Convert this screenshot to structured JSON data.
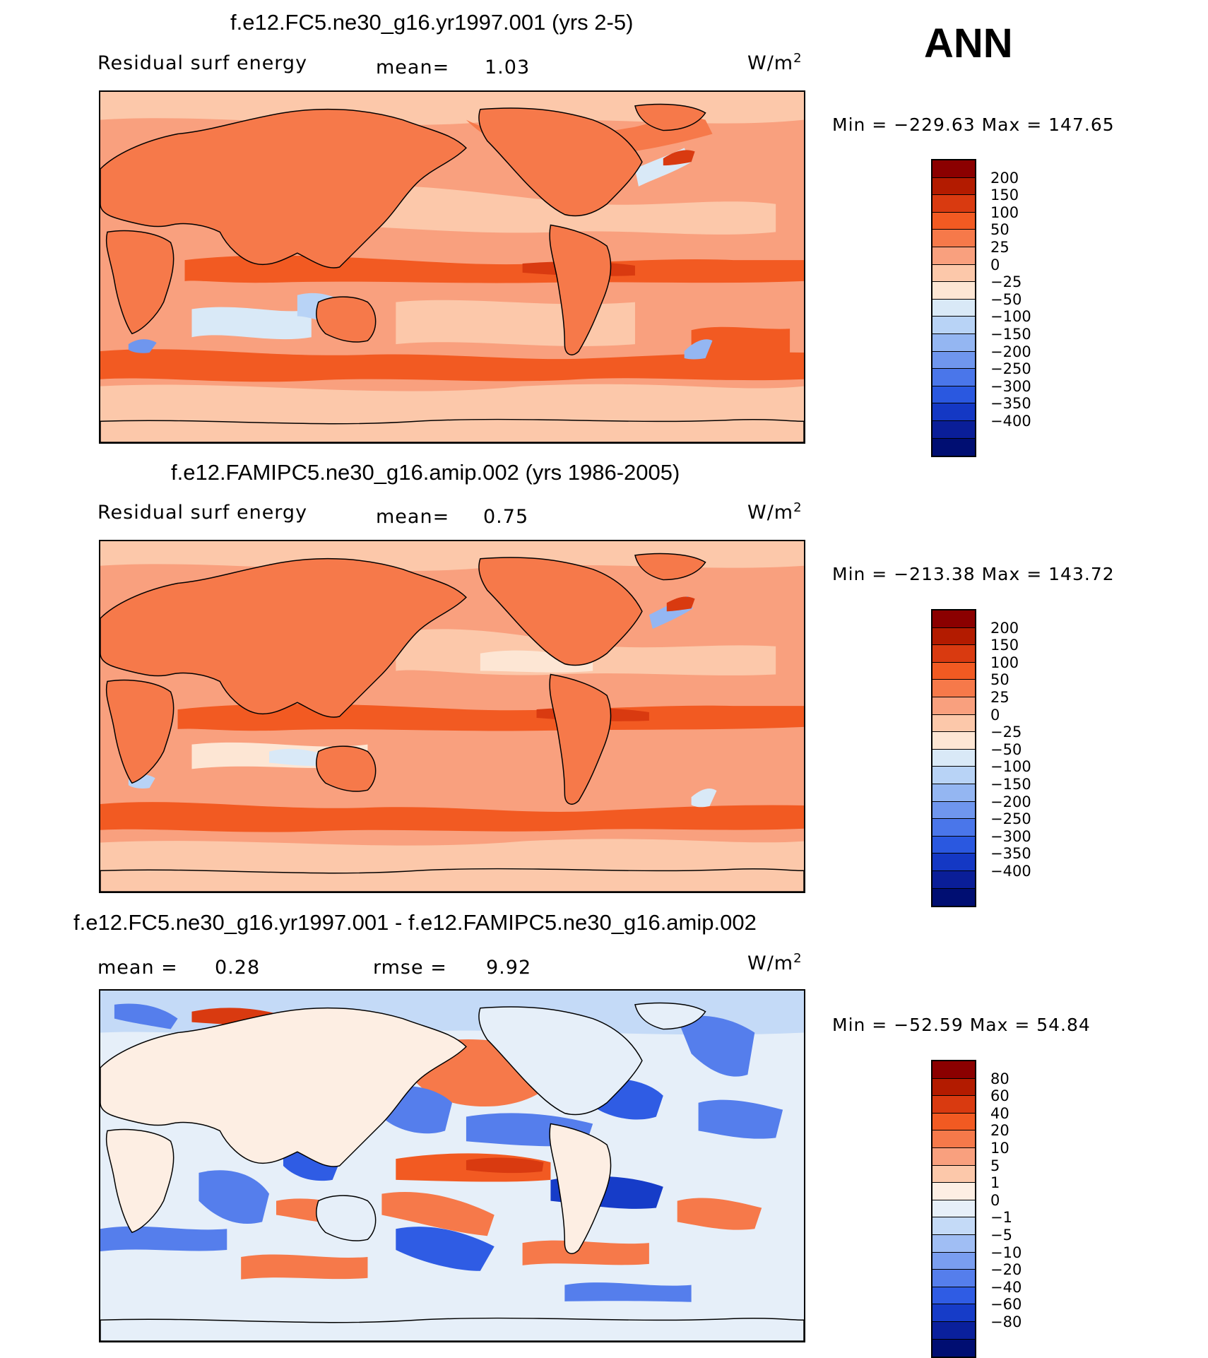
{
  "season": "ANN",
  "units": "W/m",
  "units_sup": "2",
  "palette_main": [
    "#8b0000",
    "#b31b00",
    "#d93a10",
    "#f25a22",
    "#f6794a",
    "#f9a07e",
    "#fcc8aa",
    "#fde6d4",
    "#d9e9f7",
    "#b8d3f6",
    "#94b6f2",
    "#6f96ee",
    "#4a76ea",
    "#2a58e0",
    "#1438c4",
    "#0a1e98",
    "#000e72"
  ],
  "palette_diff": [
    "#8b0000",
    "#b31b00",
    "#d93a10",
    "#f25a22",
    "#f6794a",
    "#f9a07e",
    "#fcc8aa",
    "#fdeee3",
    "#e6eff9",
    "#c4daf7",
    "#a0bef4",
    "#7a9ef0",
    "#557eec",
    "#2f5ce4",
    "#163cc8",
    "#0a209c",
    "#000e72"
  ],
  "panels": [
    {
      "title": "f.e12.FC5.ne30_g16.yr1997.001 (yrs 2-5)",
      "left_text": "Residual surf energy",
      "stat1_label": "mean=",
      "stat1_value": "1.03",
      "min_label": "Min =",
      "min_value": "−229.63",
      "max_label": "Max =",
      "max_value": "147.65",
      "levels": [
        "200",
        "150",
        "100",
        "50",
        "25",
        "0",
        "−25",
        "−50",
        "−100",
        "−150",
        "−200",
        "−250",
        "−300",
        "−350",
        "−400"
      ]
    },
    {
      "title": "f.e12.FAMIPC5.ne30_g16.amip.002 (yrs 1986-2005)",
      "left_text": "Residual surf energy",
      "stat1_label": "mean=",
      "stat1_value": "0.75",
      "min_label": "Min =",
      "min_value": "−213.38",
      "max_label": "Max =",
      "max_value": "143.72",
      "levels": [
        "200",
        "150",
        "100",
        "50",
        "25",
        "0",
        "−25",
        "−50",
        "−100",
        "−150",
        "−200",
        "−250",
        "−300",
        "−350",
        "−400"
      ]
    },
    {
      "title": "f.e12.FC5.ne30_g16.yr1997.001 - f.e12.FAMIPC5.ne30_g16.amip.002",
      "stat1_label": "mean =",
      "stat1_value": "0.28",
      "stat2_label": "rmse =",
      "stat2_value": "9.92",
      "min_label": "Min =",
      "min_value": "−52.59",
      "max_label": "Max =",
      "max_value": "54.84",
      "levels": [
        "80",
        "60",
        "40",
        "20",
        "10",
        "5",
        "1",
        "0",
        "−1",
        "−5",
        "−10",
        "−20",
        "−40",
        "−60",
        "−80"
      ]
    }
  ]
}
